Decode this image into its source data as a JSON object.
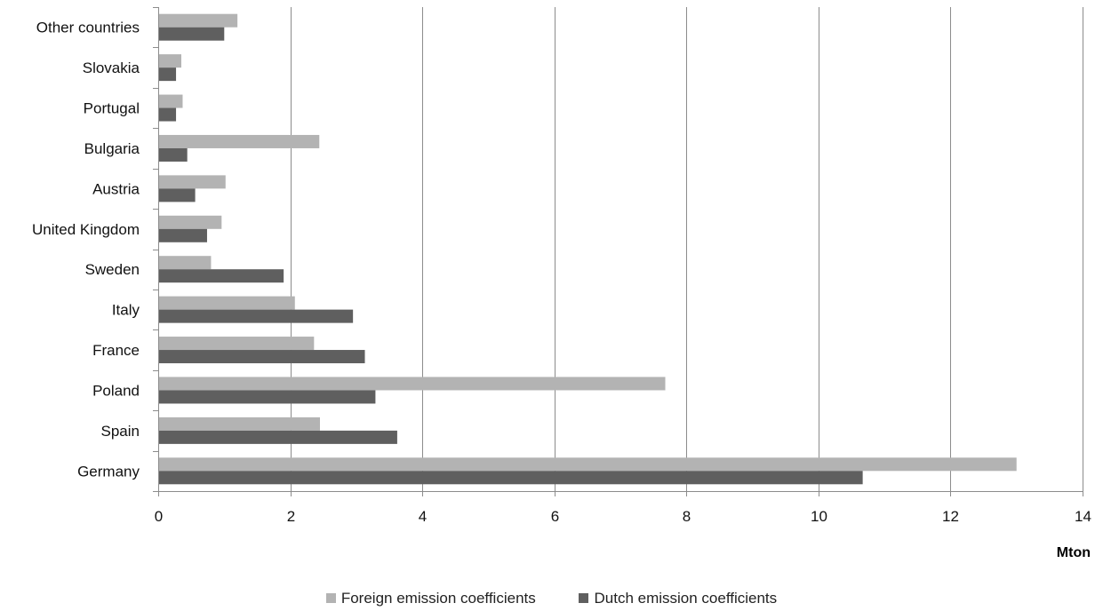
{
  "chart_data": {
    "type": "bar",
    "orientation": "horizontal",
    "categories": [
      "Other countries",
      "Slovakia",
      "Portugal",
      "Bulgaria",
      "Austria",
      "United Kingdom",
      "Sweden",
      "Italy",
      "France",
      "Poland",
      "Spain",
      "Germany"
    ],
    "series": [
      {
        "name": "Foreign emission coefficients",
        "color": "#b3b3b3",
        "values": [
          1.2,
          0.35,
          0.37,
          2.44,
          1.02,
          0.96,
          0.8,
          2.07,
          2.36,
          7.68,
          2.45,
          13.0
        ]
      },
      {
        "name": "Dutch emission coefficients",
        "color": "#5f5f5f",
        "values": [
          1.0,
          0.27,
          0.27,
          0.44,
          0.56,
          0.74,
          1.9,
          2.95,
          3.13,
          3.29,
          3.62,
          10.67
        ]
      }
    ],
    "x_ticks": [
      "0",
      "2",
      "4",
      "6",
      "8",
      "10",
      "12",
      "14"
    ],
    "xlim": [
      0,
      14
    ],
    "xlabel": "Mton",
    "grid": "vertical",
    "legend_position": "bottom"
  }
}
